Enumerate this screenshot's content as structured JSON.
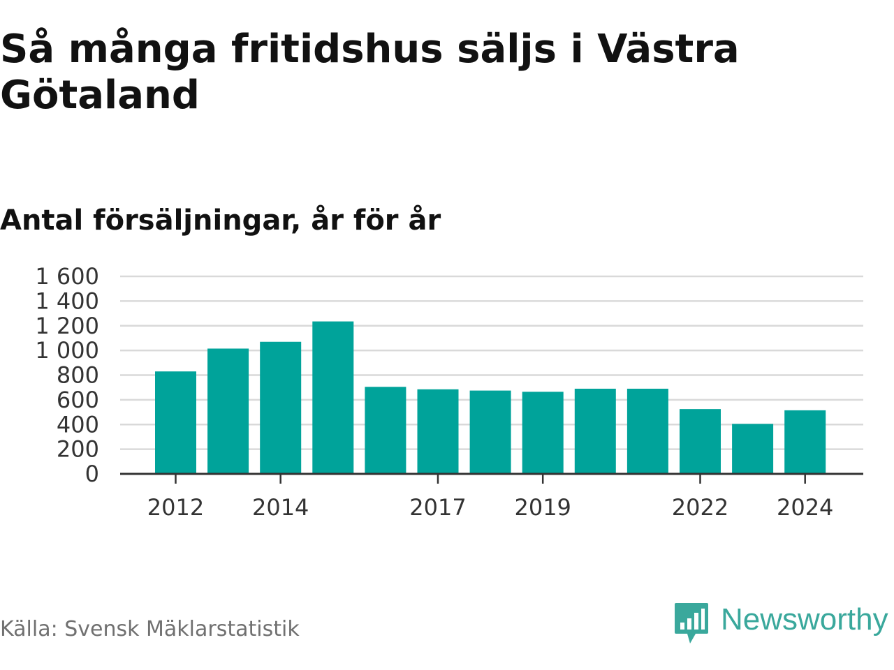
{
  "title": "Så många fritidshus säljs i Västra Götaland",
  "subtitle": "Antal försäljningar, år för år",
  "source": "Källa: Svensk Mäklarstatistik",
  "brand": {
    "name": "Newsworthy",
    "logo_icon": "bar-chart-speech-bubble-icon",
    "color": "#3aa89c"
  },
  "colors": {
    "bar": "#00a39a",
    "grid": "#d9d9d9",
    "axis": "#333333"
  },
  "chart_data": {
    "type": "bar",
    "categories": [
      "2012",
      "2013",
      "2014",
      "2015",
      "2016",
      "2017",
      "2018",
      "2019",
      "2020",
      "2021",
      "2022",
      "2023",
      "2024"
    ],
    "values": [
      830,
      1015,
      1070,
      1235,
      705,
      685,
      675,
      665,
      690,
      690,
      525,
      405,
      515
    ],
    "x_tick_labels": [
      "2012",
      "2014",
      "2017",
      "2019",
      "2022",
      "2024"
    ],
    "y_ticks": [
      0,
      200,
      400,
      600,
      800,
      1000,
      1200,
      1400,
      1600
    ],
    "y_tick_labels": [
      "0",
      "200",
      "400",
      "600",
      "800",
      "1 000",
      "1 200",
      "1 400",
      "1 600"
    ],
    "ylim": [
      0,
      1600
    ],
    "grid": true,
    "legend": false
  }
}
